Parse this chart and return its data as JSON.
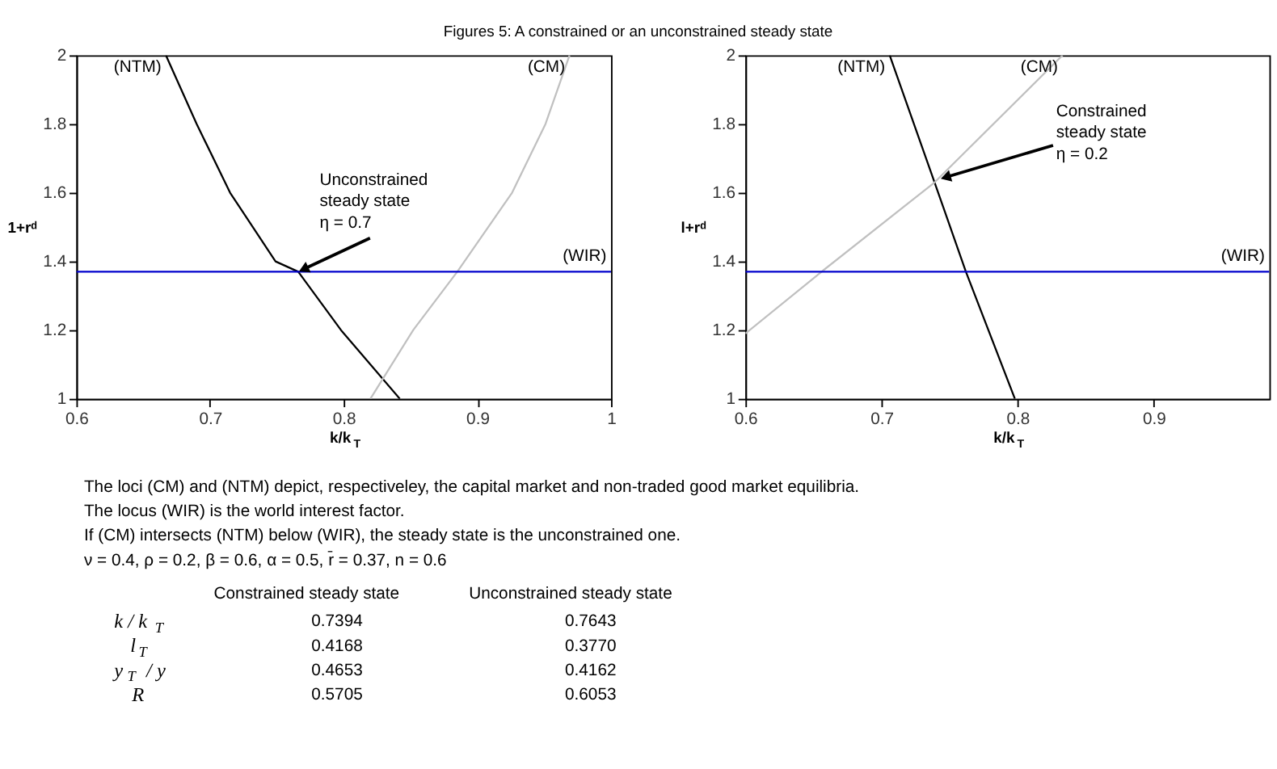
{
  "chart_data": [
    {
      "type": "line",
      "xlabel": "k/k$_{T}$",
      "ylabel": "1+rᵈ",
      "xlim": [
        0.6,
        1
      ],
      "ylim": [
        1,
        2
      ],
      "xticks": [
        0.6,
        0.7,
        0.8,
        0.9,
        1
      ],
      "yticks": [
        1,
        1.2,
        1.4,
        1.6,
        1.8,
        2
      ],
      "grid": false,
      "legend": false,
      "series": [
        {
          "name": "(NTM)",
          "color": "#000000",
          "x": [
            0.667,
            0.69,
            0.715,
            0.749,
            0.766,
            0.798,
            0.842
          ],
          "values": [
            2,
            1.8,
            1.6,
            1.4,
            1.37,
            1.2,
            1
          ]
        },
        {
          "name": "(CM)",
          "color": "#c0c0c0",
          "x": [
            0.82,
            0.852,
            0.885,
            0.926,
            0.951,
            0.969
          ],
          "values": [
            1,
            1.2,
            1.37,
            1.6,
            1.8,
            2
          ]
        },
        {
          "name": "(WIR)",
          "color": "#0000cc",
          "x": [
            0.6,
            1
          ],
          "values": [
            1.37,
            1.37
          ]
        }
      ],
      "annotations": [
        {
          "text": "Unconstrained\nsteady state\nη = 0.7",
          "x": 0.766,
          "y": 1.37
        }
      ]
    },
    {
      "type": "line",
      "xlabel": "k/k$_{T}$",
      "ylabel": "l+rᵈ",
      "xlim": [
        0.6,
        0.985
      ],
      "ylim": [
        1,
        2
      ],
      "xticks": [
        0.6,
        0.7,
        0.8,
        0.9
      ],
      "yticks": [
        1,
        1.2,
        1.4,
        1.6,
        1.8,
        2
      ],
      "grid": false,
      "legend": false,
      "series": [
        {
          "name": "(NTM)",
          "color": "#000000",
          "x": [
            0.706,
            0.739,
            0.762,
            0.798
          ],
          "values": [
            2,
            1.63,
            1.37,
            1
          ]
        },
        {
          "name": "(CM)",
          "color": "#c0c0c0",
          "x": [
            0.6,
            0.656,
            0.739,
            0.833
          ],
          "values": [
            1.19,
            1.37,
            1.63,
            2
          ]
        },
        {
          "name": "(WIR)",
          "color": "#0000cc",
          "x": [
            0.6,
            0.985
          ],
          "values": [
            1.37,
            1.37
          ]
        }
      ],
      "annotations": [
        {
          "text": "Constrained\nsteady state\nη = 0.2",
          "x": 0.743,
          "y": 1.64
        }
      ]
    },
    {
      "type": "other",
      "title": "Figures 5: A constrained or an unconstrained steady state",
      "annotations": [
        "The loci (CM) and (NTM) depict, respectiveley, the capital market and non-traded good market equilibria.",
        "The locus (WIR) is the world interest factor.",
        "If (CM) intersects (NTM) below (WIR), the steady state is the unconstrained one.",
        "ν = 0.4, ρ = 0.2, β = 0.6, α = 0.5, r̄ = 0.37, n = 0.6",
        "Constrained steady state",
        "Unconstrained steady state",
        "k / k$_{T}$",
        "0.7394",
        "0.7643",
        "l$_{T}$",
        "0.4168",
        "0.3770",
        "y$_{T}$ / y",
        "0.4653",
        "0.4162",
        "R",
        "0.5705",
        "0.6053"
      ]
    }
  ]
}
